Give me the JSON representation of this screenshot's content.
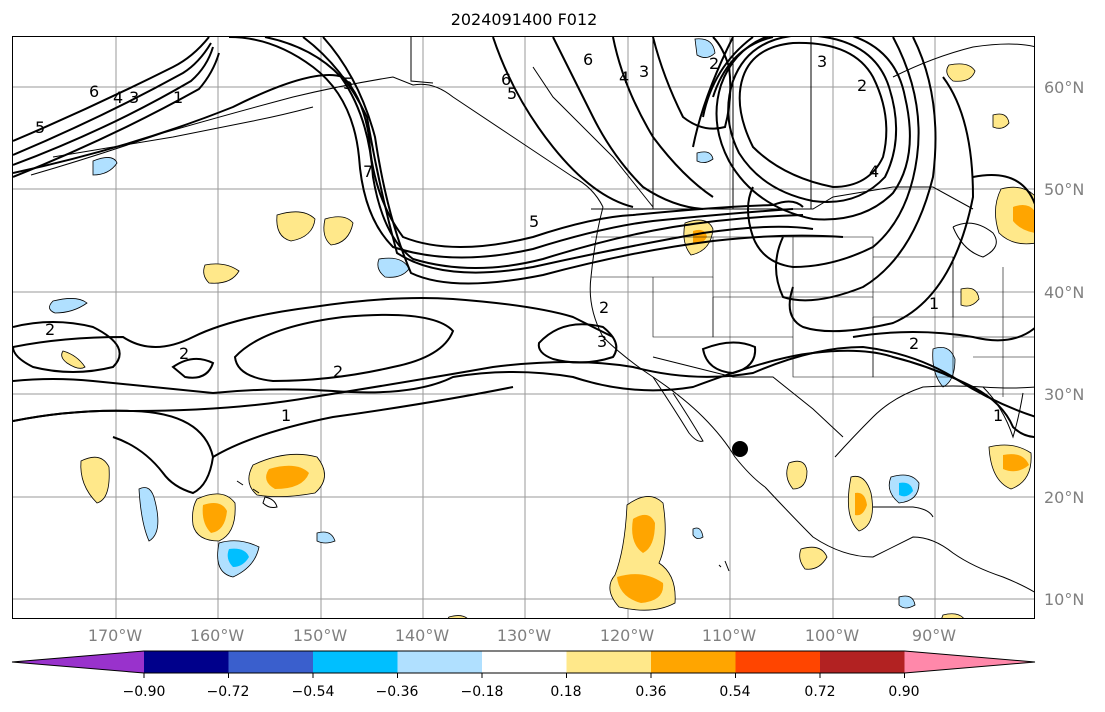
{
  "title": "2024091400 F012",
  "lat_labels": [
    "60°N",
    "50°N",
    "40°N",
    "30°N",
    "20°N",
    "10°N"
  ],
  "lon_labels": [
    "170°W",
    "160°W",
    "150°W",
    "140°W",
    "130°W",
    "120°W",
    "110°W",
    "100°W",
    "90°W"
  ],
  "contour_labels": [
    "6",
    "5",
    "4",
    "3",
    "1",
    "5",
    "6",
    "4",
    "3",
    "2",
    "6",
    "5",
    "4",
    "3",
    "2",
    "1",
    "5",
    "7",
    "2",
    "2",
    "2",
    "3",
    "2",
    "1",
    "1",
    "2"
  ],
  "colorbar": {
    "ticks": [
      "−0.90",
      "−0.72",
      "−0.54",
      "−0.36",
      "−0.18",
      "0.18",
      "0.36",
      "0.54",
      "0.72",
      "0.90"
    ],
    "colors": [
      "#9932cc",
      "#00008b",
      "#3a5fcd",
      "#00bfff",
      "#b0e0ff",
      "#ffffff",
      "#ffe88a",
      "#ffa500",
      "#ff4500",
      "#b22222",
      "#ff88aa"
    ]
  },
  "marker": "center-marker"
}
